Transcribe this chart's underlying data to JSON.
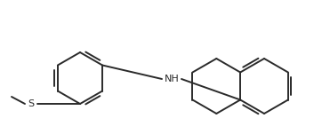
{
  "background_color": "#ffffff",
  "line_color": "#2a2a2a",
  "line_width": 1.4,
  "figsize": [
    3.53,
    1.51
  ],
  "dpi": 100,
  "nh_label": "NH",
  "s_label": "S",
  "font_size": 7.5
}
